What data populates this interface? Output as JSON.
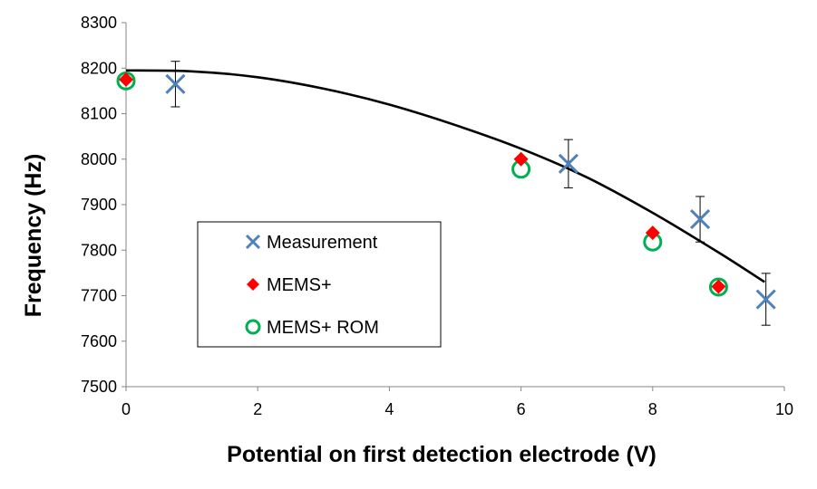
{
  "chart_data": {
    "type": "scatter",
    "xlabel": "Potential on first detection electrode (V)",
    "ylabel": "Frequency (Hz)",
    "xlim": [
      0,
      10
    ],
    "ylim": [
      7500,
      8300
    ],
    "x_ticks": [
      "0",
      "2",
      "4",
      "6",
      "8",
      "10"
    ],
    "y_ticks": [
      "7500",
      "7600",
      "7700",
      "7800",
      "7900",
      "8000",
      "8100",
      "8200",
      "8300"
    ],
    "grid": false,
    "legend": {
      "placement": "center-left",
      "boxed": true
    },
    "series": [
      {
        "name": "Measurement",
        "marker": "x-icon",
        "color": "#4f81bd",
        "points": [
          {
            "x": 0.75,
            "y": 8165,
            "err": 50
          },
          {
            "x": 6.72,
            "y": 7990,
            "err": 53
          },
          {
            "x": 8.72,
            "y": 7868,
            "err": 50
          },
          {
            "x": 9.72,
            "y": 7692,
            "err": 57
          }
        ]
      },
      {
        "name": "MEMS+",
        "marker": "diamond-icon",
        "color": "#ff0000",
        "points": [
          {
            "x": 0.0,
            "y": 8175
          },
          {
            "x": 6.0,
            "y": 8000
          },
          {
            "x": 8.0,
            "y": 7838
          },
          {
            "x": 9.0,
            "y": 7720
          }
        ]
      },
      {
        "name": "MEMS+ ROM",
        "marker": "circle-icon",
        "color": "#00b050",
        "points": [
          {
            "x": 0.0,
            "y": 8172
          },
          {
            "x": 6.0,
            "y": 7978
          },
          {
            "x": 8.0,
            "y": 7818
          },
          {
            "x": 9.0,
            "y": 7719
          }
        ]
      }
    ],
    "trend_curve": {
      "color": "#000000",
      "points": [
        {
          "x": 0.0,
          "y": 8195
        },
        {
          "x": 1.0,
          "y": 8193
        },
        {
          "x": 2.0,
          "y": 8180
        },
        {
          "x": 3.0,
          "y": 8155
        },
        {
          "x": 4.0,
          "y": 8120
        },
        {
          "x": 5.0,
          "y": 8075
        },
        {
          "x": 6.0,
          "y": 8023
        },
        {
          "x": 7.0,
          "y": 7960
        },
        {
          "x": 8.0,
          "y": 7882
        },
        {
          "x": 9.0,
          "y": 7795
        },
        {
          "x": 9.7,
          "y": 7730
        }
      ]
    }
  }
}
